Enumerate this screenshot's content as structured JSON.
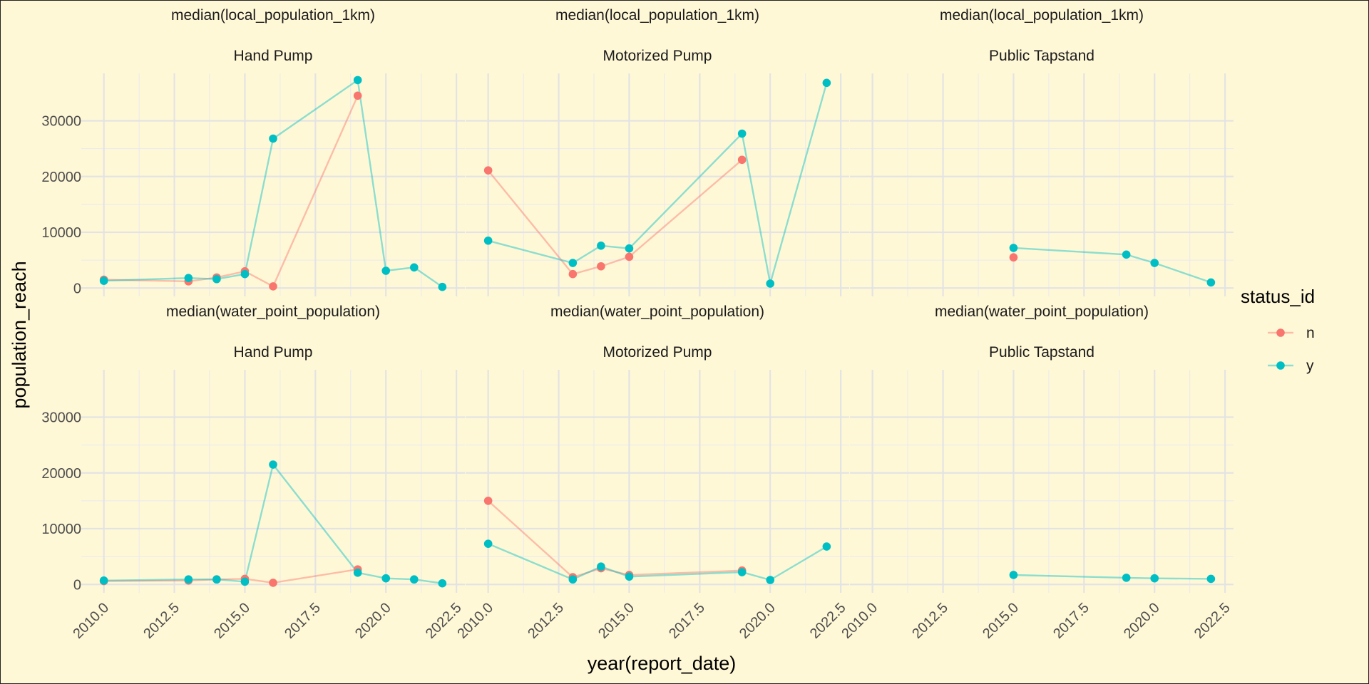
{
  "chart_data": {
    "type": "line",
    "xlabel": "year(report_date)",
    "ylabel": "population_reach",
    "xlim": [
      2009.2,
      2022.8
    ],
    "ylim": [
      -1500,
      38500
    ],
    "x_ticks": [
      2010.0,
      2012.5,
      2015.0,
      2017.5,
      2020.0,
      2022.5
    ],
    "x_tick_labels": [
      "2010.0",
      "2012.5",
      "2015.0",
      "2017.5",
      "2020.0",
      "2022.5"
    ],
    "y_ticks": [
      0,
      10000,
      20000,
      30000
    ],
    "y_tick_labels": [
      "0",
      "10000",
      "20000",
      "30000"
    ],
    "grid": true,
    "legend": {
      "title": "status_id",
      "position": "right",
      "entries": [
        {
          "label": "n",
          "color": "#f8766d"
        },
        {
          "label": "y",
          "color": "#00bfc4"
        }
      ]
    },
    "facet_rows": [
      "median(local_population_1km)",
      "median(water_point_population)"
    ],
    "facet_cols": [
      "Hand Pump",
      "Motorized Pump",
      "Public Tapstand"
    ],
    "panels": [
      {
        "row": 0,
        "col": 0,
        "series": [
          {
            "status": "n",
            "x": [
              2010,
              2013,
              2014,
              2015,
              2016,
              2019
            ],
            "y": [
              1500,
              1200,
              1900,
              3000,
              300,
              34500
            ]
          },
          {
            "status": "y",
            "x": [
              2010,
              2013,
              2014,
              2015,
              2016,
              2019,
              2020,
              2021,
              2022
            ],
            "y": [
              1300,
              1800,
              1600,
              2500,
              26800,
              37300,
              3100,
              3700,
              200
            ]
          }
        ]
      },
      {
        "row": 0,
        "col": 1,
        "series": [
          {
            "status": "n",
            "x": [
              2010,
              2013,
              2014,
              2015,
              2019
            ],
            "y": [
              21100,
              2500,
              3900,
              5600,
              23000
            ]
          },
          {
            "status": "y",
            "x": [
              2010,
              2013,
              2014,
              2015,
              2019,
              2020,
              2022
            ],
            "y": [
              8500,
              4500,
              7600,
              7100,
              27700,
              800,
              36800
            ]
          }
        ]
      },
      {
        "row": 0,
        "col": 2,
        "series": [
          {
            "status": "n",
            "x": [
              2015
            ],
            "y": [
              5500
            ]
          },
          {
            "status": "y",
            "x": [
              2015,
              2019,
              2020,
              2022
            ],
            "y": [
              7200,
              6000,
              4500,
              1000
            ]
          }
        ]
      },
      {
        "row": 1,
        "col": 0,
        "series": [
          {
            "status": "n",
            "x": [
              2010,
              2013,
              2014,
              2015,
              2016,
              2019
            ],
            "y": [
              600,
              700,
              900,
              1000,
              300,
              2700
            ]
          },
          {
            "status": "y",
            "x": [
              2010,
              2013,
              2014,
              2015,
              2016,
              2019,
              2020,
              2021,
              2022
            ],
            "y": [
              700,
              900,
              900,
              500,
              21500,
              2100,
              1100,
              900,
              200
            ]
          }
        ]
      },
      {
        "row": 1,
        "col": 1,
        "series": [
          {
            "status": "n",
            "x": [
              2010,
              2013,
              2014,
              2015,
              2019
            ],
            "y": [
              15000,
              1300,
              2900,
              1700,
              2500
            ]
          },
          {
            "status": "y",
            "x": [
              2010,
              2013,
              2014,
              2015,
              2019,
              2020,
              2022
            ],
            "y": [
              7300,
              900,
              3200,
              1400,
              2200,
              800,
              6800
            ]
          }
        ]
      },
      {
        "row": 1,
        "col": 2,
        "series": [
          {
            "status": "y",
            "x": [
              2015,
              2019,
              2020,
              2022
            ],
            "y": [
              1700,
              1200,
              1100,
              1000
            ]
          }
        ]
      }
    ]
  }
}
